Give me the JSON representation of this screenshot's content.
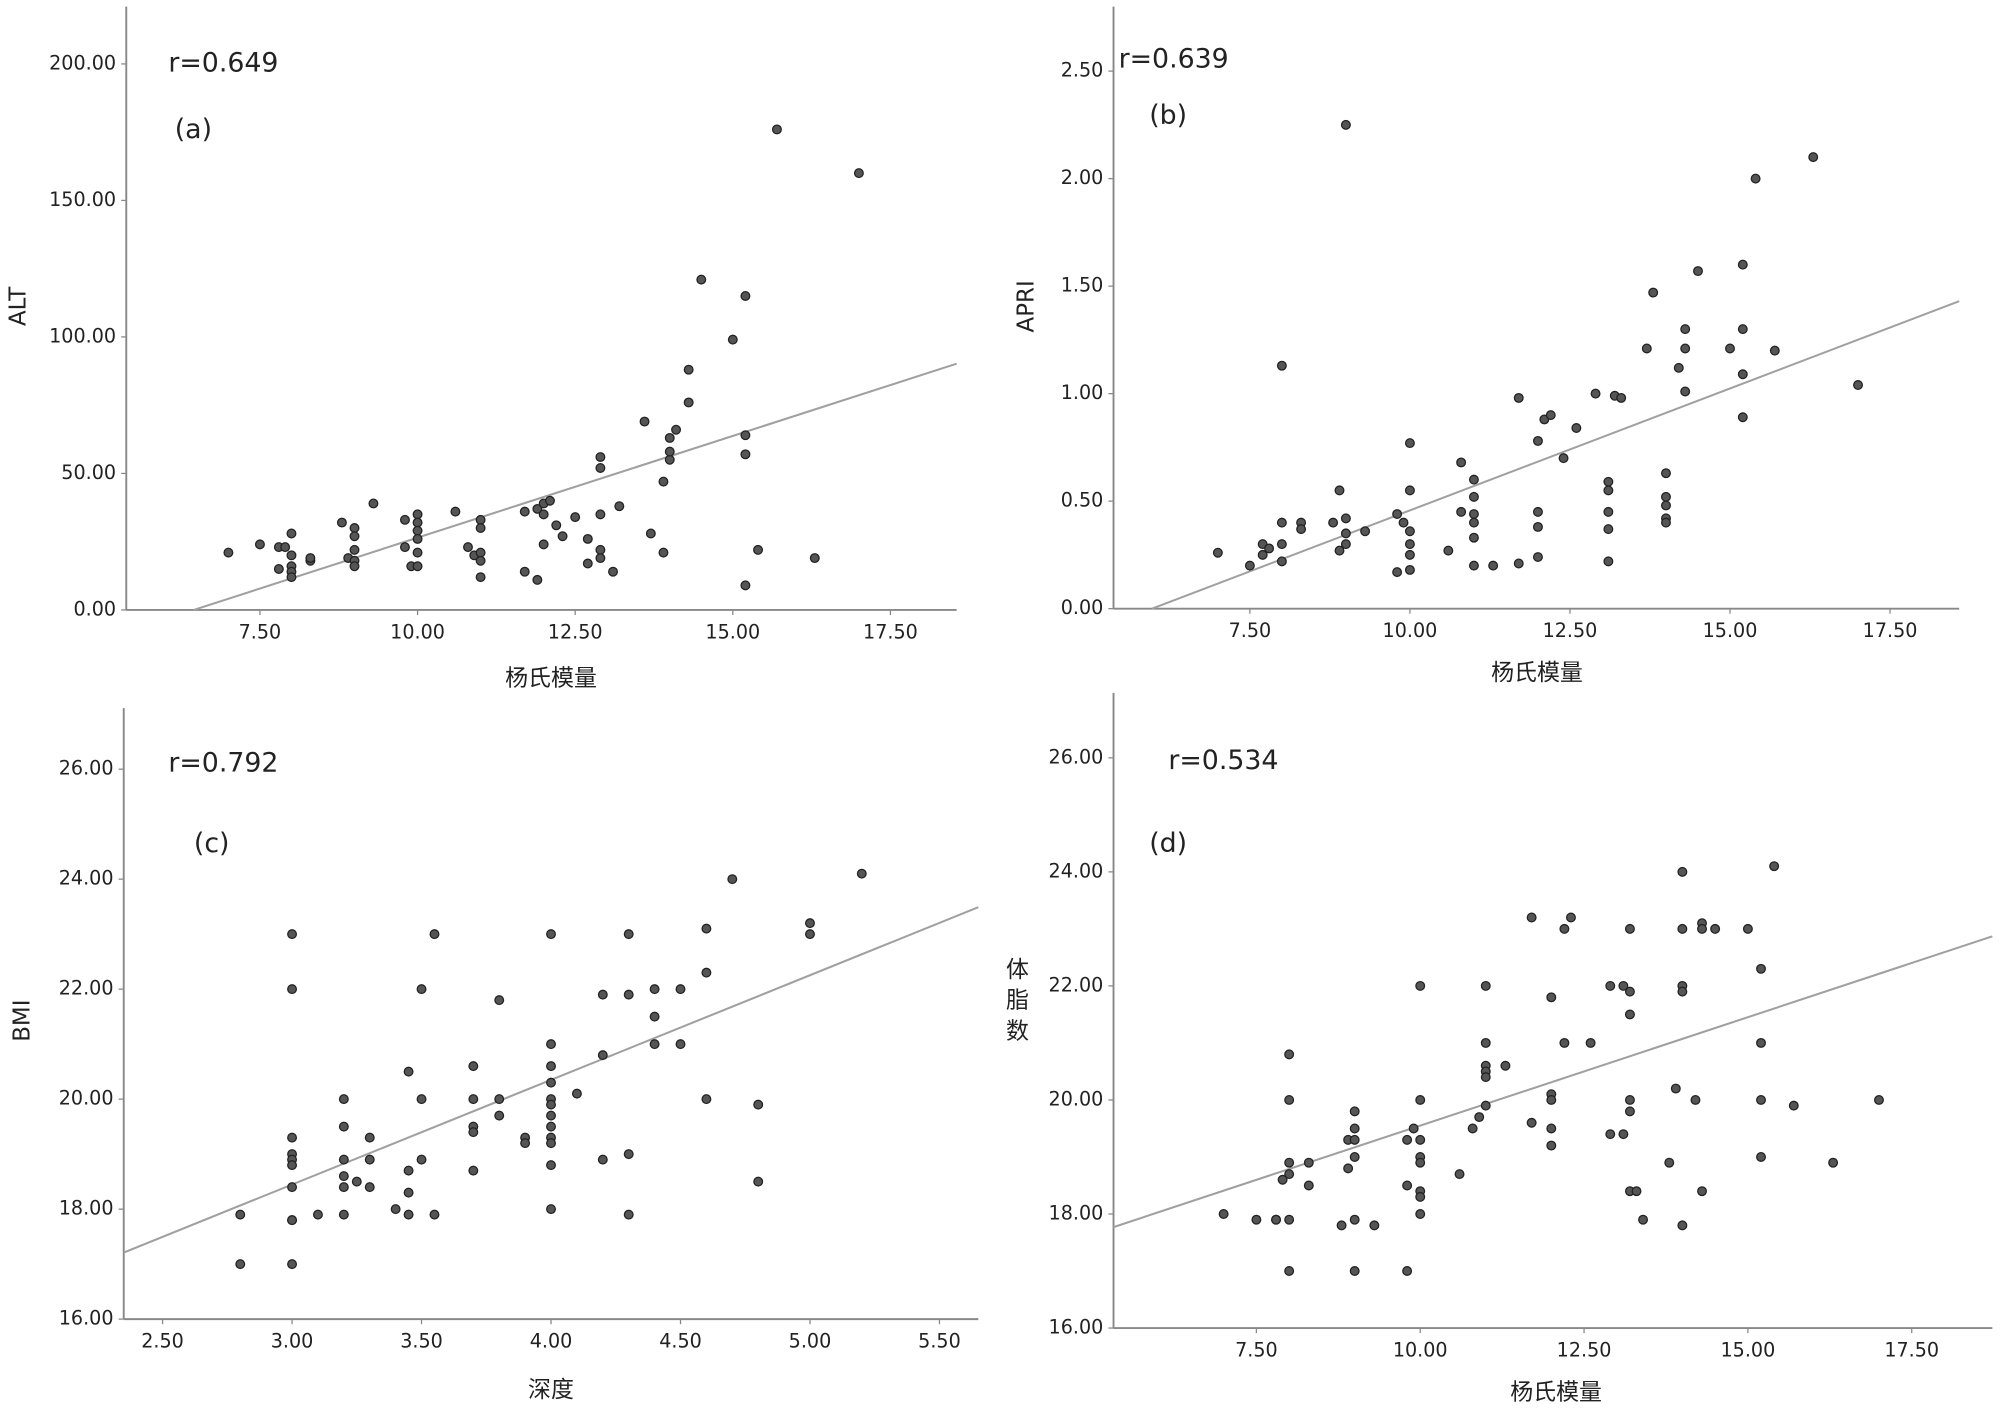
{
  "chart_data": [
    {
      "type": "scatter",
      "annotations": [
        "r=0.649",
        "(a)"
      ],
      "x_label": "杨氏模量",
      "y_label": "ALT",
      "color": "#555555",
      "line_color": "#a0a0a0",
      "xlim": [
        5.38,
        18.55
      ],
      "ylim": [
        0,
        221
      ],
      "xticks": [
        {
          "value": 7.5,
          "label": "7.50"
        },
        {
          "value": 10,
          "label": "10.00"
        },
        {
          "value": 12.5,
          "label": "12.50"
        },
        {
          "value": 15,
          "label": "15.00"
        },
        {
          "value": 17.5,
          "label": "17.50"
        }
      ],
      "yticks": [
        {
          "value": 0,
          "label": "0.00"
        },
        {
          "value": 50,
          "label": "50.00"
        },
        {
          "value": 100,
          "label": "100.00"
        },
        {
          "value": 150,
          "label": "150.00"
        },
        {
          "value": 200,
          "label": "200.00"
        }
      ],
      "x": [
        7,
        7.5,
        7.8,
        7.9,
        8,
        8,
        8,
        8,
        8,
        7.8,
        8.3,
        8.3,
        8.8,
        8.9,
        9,
        9,
        9,
        9,
        9,
        9.3,
        9.8,
        9.8,
        9.9,
        10,
        10,
        10,
        10,
        10,
        10,
        10.6,
        10.8,
        10.9,
        11,
        11,
        11,
        11,
        11,
        11.7,
        11.7,
        11.9,
        11.9,
        12,
        12,
        12,
        12.1,
        12.2,
        12.3,
        12.5,
        12.7,
        12.7,
        12.9,
        12.9,
        12.9,
        12.9,
        12.9,
        13.1,
        13.2,
        13.6,
        13.7,
        13.9,
        13.9,
        14,
        14,
        14,
        14.1,
        14.3,
        14.3,
        14.5,
        15,
        15.2,
        15.2,
        15.2,
        15.2,
        15.4,
        15.7,
        16.3,
        17
      ],
      "y": [
        21,
        24,
        23,
        23,
        28,
        20,
        16,
        14,
        12,
        15,
        18,
        19,
        32,
        19,
        30,
        27,
        22,
        18,
        16,
        39,
        33,
        23,
        16,
        35,
        32,
        29,
        26,
        21,
        16,
        36,
        23,
        20,
        33,
        30,
        21,
        18,
        12,
        36,
        14,
        37,
        11,
        39,
        35,
        24,
        40,
        31,
        27,
        34,
        26,
        17,
        56,
        52,
        35,
        22,
        19,
        14,
        38,
        69,
        28,
        21,
        47,
        55,
        58,
        63,
        66,
        76,
        88,
        121,
        99,
        115,
        64,
        57,
        9,
        22,
        176,
        19,
        160
      ],
      "trendline": {
        "x": [
          6.45,
          18.55
        ],
        "y": [
          0,
          90.2
        ]
      }
    },
    {
      "type": "scatter",
      "annotations": [
        "r=0.639",
        "(b)"
      ],
      "x_label": "杨氏模量",
      "y_label": "APRI",
      "color": "#555555",
      "line_color": "#a0a0a0",
      "xlim": [
        5.37,
        18.58
      ],
      "ylim": [
        0,
        2.8
      ],
      "xticks": [
        {
          "value": 7.5,
          "label": "7.50"
        },
        {
          "value": 10,
          "label": "10.00"
        },
        {
          "value": 12.5,
          "label": "12.50"
        },
        {
          "value": 15,
          "label": "15.00"
        },
        {
          "value": 17.5,
          "label": "17.50"
        }
      ],
      "yticks": [
        {
          "value": 0,
          "label": "0.00"
        },
        {
          "value": 0.5,
          "label": "0.50"
        },
        {
          "value": 1,
          "label": "1.00"
        },
        {
          "value": 1.5,
          "label": "1.50"
        },
        {
          "value": 2,
          "label": "2.00"
        },
        {
          "value": 2.5,
          "label": "2.50"
        }
      ],
      "x": [
        7,
        7.5,
        7.7,
        7.7,
        7.8,
        8,
        8,
        8,
        8,
        8.3,
        8.3,
        8.8,
        8.9,
        8.9,
        9,
        9,
        9,
        9,
        9.3,
        9.8,
        9.8,
        9.9,
        10,
        10,
        10,
        10,
        10,
        10,
        10.6,
        10.8,
        10.8,
        11,
        11,
        11,
        11,
        11,
        11,
        11.3,
        11.7,
        11.7,
        12,
        12,
        12,
        12,
        12.1,
        12.2,
        12.4,
        12.6,
        12.9,
        13.1,
        13.1,
        13.1,
        13.1,
        13.1,
        13.2,
        13.3,
        13.7,
        13.8,
        14,
        14,
        14,
        14,
        14,
        14.2,
        14.3,
        14.3,
        14.3,
        14.5,
        15,
        15.2,
        15.2,
        15.2,
        15.2,
        15.4,
        15.7,
        16.3,
        17
      ],
      "y": [
        0.26,
        0.2,
        0.3,
        0.25,
        0.28,
        1.13,
        0.4,
        0.3,
        0.22,
        0.4,
        0.37,
        0.4,
        0.55,
        0.27,
        2.25,
        0.42,
        0.35,
        0.3,
        0.36,
        0.44,
        0.17,
        0.4,
        0.77,
        0.55,
        0.36,
        0.3,
        0.25,
        0.18,
        0.27,
        0.68,
        0.45,
        0.6,
        0.52,
        0.44,
        0.4,
        0.33,
        0.2,
        0.2,
        0.98,
        0.21,
        0.78,
        0.45,
        0.38,
        0.24,
        0.88,
        0.9,
        0.7,
        0.84,
        1.0,
        0.59,
        0.55,
        0.45,
        0.37,
        0.22,
        0.99,
        0.98,
        1.21,
        1.47,
        0.63,
        0.52,
        0.48,
        0.42,
        0.4,
        1.12,
        1.3,
        1.21,
        1.01,
        1.57,
        1.21,
        1.6,
        1.3,
        1.09,
        0.89,
        2.0,
        1.2,
        2.1,
        1.04
      ],
      "trendline": {
        "x": [
          5.97,
          18.58
        ],
        "y": [
          0,
          1.43
        ]
      }
    },
    {
      "type": "scatter",
      "annotations": [
        "r=0.792",
        "(c)"
      ],
      "x_label": "深度",
      "y_label": "BMI",
      "color": "#555555",
      "line_color": "#a0a0a0",
      "xlim": [
        2.35,
        5.65
      ],
      "ylim": [
        16,
        27.11
      ],
      "xticks": [
        {
          "value": 2.5,
          "label": "2.50"
        },
        {
          "value": 3,
          "label": "3.00"
        },
        {
          "value": 3.5,
          "label": "3.50"
        },
        {
          "value": 4,
          "label": "4.00"
        },
        {
          "value": 4.5,
          "label": "4.50"
        },
        {
          "value": 5,
          "label": "5.00"
        },
        {
          "value": 5.5,
          "label": "5.50"
        }
      ],
      "yticks": [
        {
          "value": 16,
          "label": "16.00"
        },
        {
          "value": 18,
          "label": "18.00"
        },
        {
          "value": 20,
          "label": "20.00"
        },
        {
          "value": 22,
          "label": "22.00"
        },
        {
          "value": 24,
          "label": "24.00"
        },
        {
          "value": 26,
          "label": "26.00"
        }
      ],
      "x": [
        2.8,
        2.8,
        3,
        3,
        3,
        3,
        3,
        3,
        3,
        3,
        3,
        3,
        3.1,
        3.2,
        3.2,
        3.2,
        3.2,
        3.2,
        3.2,
        3.25,
        3.3,
        3.3,
        3.3,
        3.4,
        3.45,
        3.45,
        3.45,
        3.45,
        3.5,
        3.5,
        3.5,
        3.55,
        3.55,
        3.7,
        3.7,
        3.7,
        3.7,
        3.7,
        3.8,
        3.8,
        3.8,
        3.9,
        3.9,
        4,
        4,
        4,
        4,
        4,
        4,
        4,
        4,
        4,
        4,
        4,
        4,
        4.1,
        4.2,
        4.2,
        4.2,
        4.3,
        4.3,
        4.3,
        4.3,
        4.4,
        4.4,
        4.4,
        4.5,
        4.5,
        4.6,
        4.6,
        4.6,
        4.7,
        4.8,
        4.8,
        5,
        5,
        5.2
      ],
      "y": [
        17.9,
        17,
        23,
        22,
        19.3,
        19,
        18.9,
        18.8,
        18.4,
        17.8,
        17.8,
        17,
        17.9,
        20,
        19.5,
        18.9,
        18.6,
        18.4,
        17.9,
        18.5,
        19.3,
        18.9,
        18.4,
        18,
        20.5,
        18.7,
        18.3,
        17.9,
        22,
        20,
        18.9,
        23,
        17.9,
        20.6,
        20,
        19.5,
        19.4,
        18.7,
        21.8,
        20,
        19.7,
        19.3,
        19.2,
        23,
        21,
        20.6,
        20.3,
        20,
        19.9,
        19.7,
        19.5,
        19.3,
        19.2,
        18.8,
        18,
        20.1,
        21.9,
        20.8,
        18.9,
        23,
        21.9,
        19,
        17.9,
        22,
        21.5,
        21,
        22,
        21,
        23.1,
        22.3,
        20,
        24,
        19.9,
        18.5,
        23.2,
        23,
        24.1
      ],
      "trendline": {
        "x": [
          2.35,
          5.65
        ],
        "y": [
          17.21,
          23.49
        ]
      }
    },
    {
      "type": "scatter",
      "annotations": [
        "r=0.534",
        "(d)"
      ],
      "x_label": "杨氏模量",
      "y_label": "体脂数",
      "color": "#555555",
      "line_color": "#a0a0a0",
      "xlim": [
        5.32,
        18.73
      ],
      "ylim": [
        16,
        27.14
      ],
      "xticks": [
        {
          "value": 7.5,
          "label": "7.50"
        },
        {
          "value": 10,
          "label": "10.00"
        },
        {
          "value": 12.5,
          "label": "12.50"
        },
        {
          "value": 15,
          "label": "15.00"
        },
        {
          "value": 17.5,
          "label": "17.50"
        }
      ],
      "yticks": [
        {
          "value": 16,
          "label": "16.00"
        },
        {
          "value": 18,
          "label": "18.00"
        },
        {
          "value": 20,
          "label": "20.00"
        },
        {
          "value": 22,
          "label": "22.00"
        },
        {
          "value": 24,
          "label": "24.00"
        },
        {
          "value": 26,
          "label": "26.00"
        }
      ],
      "x": [
        7,
        7.5,
        7.8,
        7.8,
        8,
        8,
        8,
        8,
        8,
        7.9,
        8,
        8.3,
        8.3,
        8.8,
        8.9,
        8.9,
        9,
        9,
        9,
        9,
        9,
        9,
        9.3,
        9.8,
        9.8,
        9.8,
        9.9,
        10,
        10,
        10,
        10,
        10,
        10,
        10,
        10,
        10.6,
        10.8,
        10.9,
        11,
        11,
        11,
        11,
        11,
        11,
        11.3,
        11.7,
        11.7,
        12,
        12,
        12,
        12,
        12,
        12.2,
        12.2,
        12.3,
        12.6,
        12.9,
        12.9,
        13.1,
        13.1,
        13.2,
        13.2,
        13.2,
        13.2,
        13.2,
        13.2,
        13.3,
        13.4,
        13.8,
        13.9,
        14,
        14,
        14,
        14,
        14,
        14.2,
        14.3,
        14.3,
        14.3,
        14.5,
        15,
        15.2,
        15.2,
        15.2,
        15.2,
        15.4,
        15.7,
        16.3,
        17
      ],
      "y": [
        18,
        17.9,
        17.9,
        17.9,
        20.8,
        20,
        18.9,
        18.7,
        17.9,
        18.6,
        17,
        18.9,
        18.5,
        17.8,
        19.3,
        18.8,
        19.8,
        19.5,
        19.3,
        19,
        17.9,
        17,
        17.8,
        18.5,
        17,
        19.3,
        19.5,
        22,
        20,
        19.3,
        19,
        18.9,
        18.4,
        18.3,
        18,
        18.7,
        19.5,
        19.7,
        22,
        21,
        20.6,
        20.5,
        20.4,
        19.9,
        20.6,
        23.2,
        19.6,
        21.8,
        20.1,
        20,
        19.5,
        19.2,
        23,
        21,
        23.2,
        21,
        22,
        19.4,
        22,
        19.4,
        23,
        21.9,
        21.5,
        20,
        19.8,
        18.4,
        18.4,
        17.9,
        18.9,
        20.2,
        24,
        23,
        22,
        21.9,
        17.8,
        20,
        23.1,
        23,
        18.4,
        23,
        23,
        22.3,
        21,
        20,
        19,
        24.1,
        19.9,
        18.9,
        20
      ],
      "trendline": {
        "x": [
          5.32,
          18.73
        ],
        "y": [
          17.77,
          22.87
        ]
      }
    }
  ]
}
